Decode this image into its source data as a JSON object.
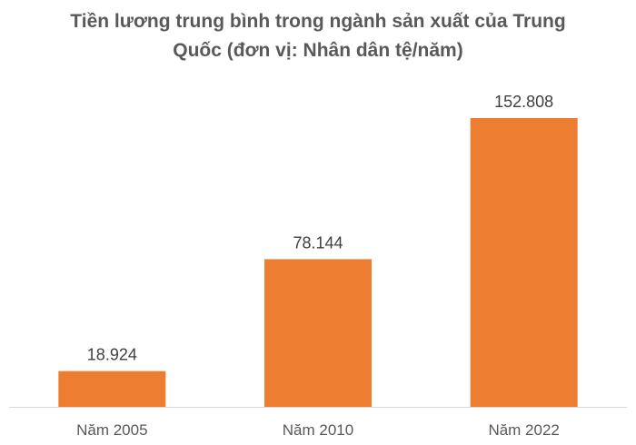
{
  "chart_data": {
    "type": "bar",
    "title": "Tiền lương trung bình trong ngành sản xuất của Trung Quốc (đơn vị: Nhân dân tệ/năm)",
    "categories": [
      "Năm 2005",
      "Năm 2010",
      "Năm 2022"
    ],
    "values": [
      18924,
      78144,
      152808
    ],
    "data_labels": [
      "18.924",
      "78.144",
      "152.808"
    ],
    "xlabel": "",
    "ylabel": "",
    "ylim": [
      0,
      160000
    ],
    "grid": false,
    "legend": "none",
    "bar_color": "#ED7D31"
  }
}
